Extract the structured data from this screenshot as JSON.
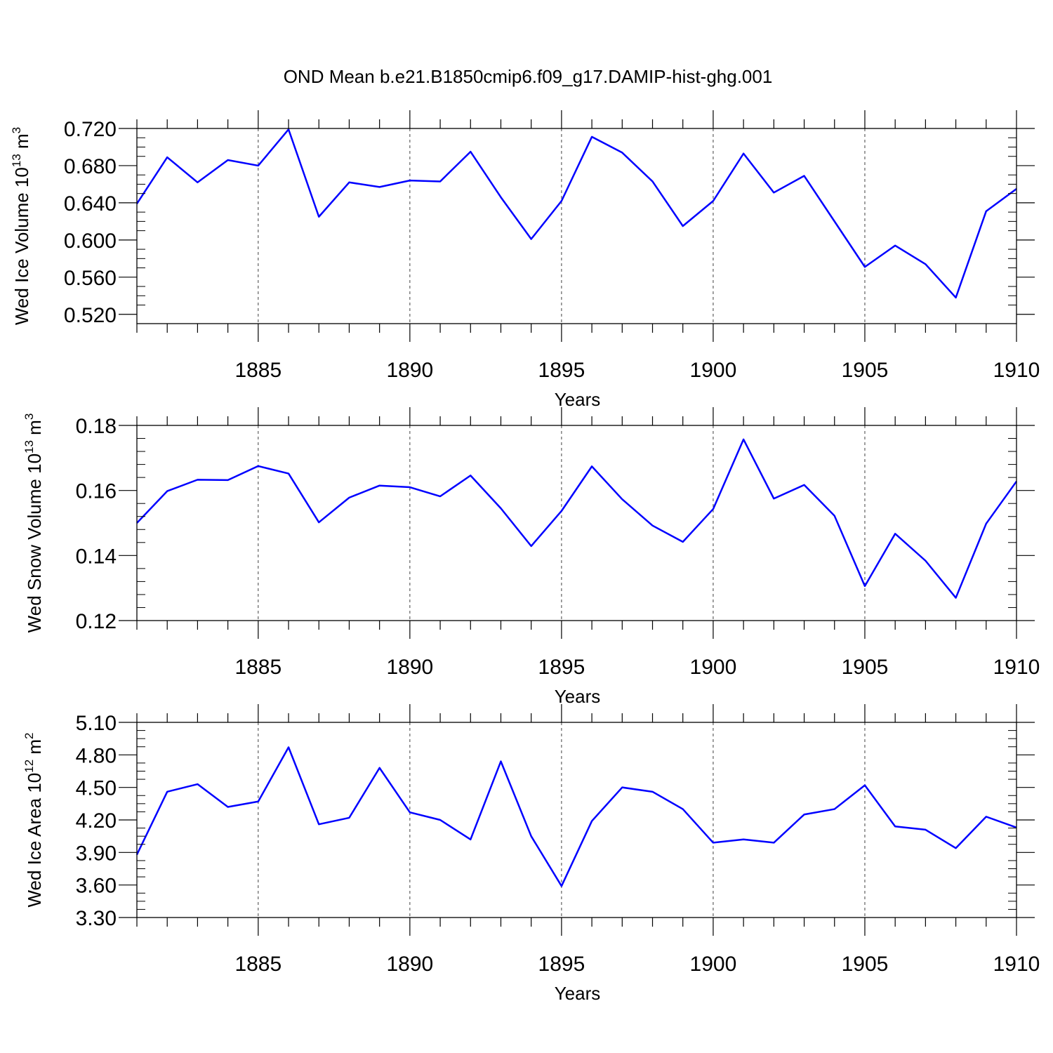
{
  "title": "OND Mean b.e21.B1850cmip6.f09_g17.DAMIP-hist-ghg.001",
  "colors": {
    "line": "#0000ff",
    "axis": "#000000",
    "grid": "#000000"
  },
  "chart_data": [
    {
      "type": "line",
      "xlabel": "Years",
      "ylabel": "Wed Ice Volume 10",
      "ylabel_exp": "13",
      "ylabel_unit": " m",
      "ylabel_unit_exp": "3",
      "xlim": [
        1881,
        1910
      ],
      "ylim": [
        0.51,
        0.72
      ],
      "yticks": [
        0.52,
        0.56,
        0.6,
        0.64,
        0.68,
        0.72
      ],
      "ytick_labels": [
        "0.520",
        "0.560",
        "0.600",
        "0.640",
        "0.680",
        "0.720"
      ],
      "yminor_step": 0.01,
      "xticks": [
        1885,
        1890,
        1895,
        1900,
        1905,
        1910
      ],
      "xtick_labels": [
        "1885",
        "1890",
        "1895",
        "1900",
        "1905",
        "1910"
      ],
      "grid": "vertical-dashed",
      "x": [
        1881,
        1882,
        1883,
        1884,
        1885,
        1886,
        1887,
        1888,
        1889,
        1890,
        1891,
        1892,
        1893,
        1894,
        1895,
        1896,
        1897,
        1898,
        1899,
        1900,
        1901,
        1902,
        1903,
        1904,
        1905,
        1906,
        1907,
        1908,
        1909,
        1910
      ],
      "values": [
        0.639,
        0.689,
        0.662,
        0.686,
        0.68,
        0.719,
        0.625,
        0.662,
        0.657,
        0.664,
        0.663,
        0.695,
        0.646,
        0.601,
        0.642,
        0.711,
        0.694,
        0.663,
        0.615,
        0.642,
        0.693,
        0.651,
        0.669,
        0.62,
        0.571,
        0.594,
        0.574,
        0.538,
        0.631,
        0.655
      ]
    },
    {
      "type": "line",
      "xlabel": "Years",
      "ylabel": "Wed Snow Volume 10",
      "ylabel_exp": "13",
      "ylabel_unit": " m",
      "ylabel_unit_exp": "3",
      "xlim": [
        1881,
        1910
      ],
      "ylim": [
        0.12,
        0.18
      ],
      "yticks": [
        0.12,
        0.14,
        0.16,
        0.18
      ],
      "ytick_labels": [
        "0.12",
        "0.14",
        "0.16",
        "0.18"
      ],
      "yminor_step": 0.004,
      "xticks": [
        1885,
        1890,
        1895,
        1900,
        1905,
        1910
      ],
      "xtick_labels": [
        "1885",
        "1890",
        "1895",
        "1900",
        "1905",
        "1910"
      ],
      "grid": "vertical-dashed",
      "x": [
        1881,
        1882,
        1883,
        1884,
        1885,
        1886,
        1887,
        1888,
        1889,
        1890,
        1891,
        1892,
        1893,
        1894,
        1895,
        1896,
        1897,
        1898,
        1899,
        1900,
        1901,
        1902,
        1903,
        1904,
        1905,
        1906,
        1907,
        1908,
        1909,
        1910
      ],
      "values": [
        0.15,
        0.1598,
        0.1633,
        0.1632,
        0.1675,
        0.1652,
        0.1502,
        0.1578,
        0.1615,
        0.161,
        0.1582,
        0.1646,
        0.1545,
        0.1429,
        0.1537,
        0.1674,
        0.1573,
        0.1492,
        0.1442,
        0.1543,
        0.1757,
        0.1575,
        0.1617,
        0.1522,
        0.1306,
        0.1467,
        0.1384,
        0.127,
        0.1498,
        0.1628
      ]
    },
    {
      "type": "line",
      "xlabel": "Years",
      "ylabel": "Wed Ice Area 10",
      "ylabel_exp": "12",
      "ylabel_unit": " m",
      "ylabel_unit_exp": "2",
      "xlim": [
        1881,
        1910
      ],
      "ylim": [
        3.3,
        5.1
      ],
      "yticks": [
        3.3,
        3.6,
        3.9,
        4.2,
        4.5,
        4.8,
        5.1
      ],
      "ytick_labels": [
        "3.30",
        "3.60",
        "3.90",
        "4.20",
        "4.50",
        "4.80",
        "5.10"
      ],
      "yminor_step": 0.075,
      "xticks": [
        1885,
        1890,
        1895,
        1900,
        1905,
        1910
      ],
      "xtick_labels": [
        "1885",
        "1890",
        "1895",
        "1900",
        "1905",
        "1910"
      ],
      "grid": "vertical-dashed",
      "x": [
        1881,
        1882,
        1883,
        1884,
        1885,
        1886,
        1887,
        1888,
        1889,
        1890,
        1891,
        1892,
        1893,
        1894,
        1895,
        1896,
        1897,
        1898,
        1899,
        1900,
        1901,
        1902,
        1903,
        1904,
        1905,
        1906,
        1907,
        1908,
        1909,
        1910
      ],
      "values": [
        3.88,
        4.46,
        4.53,
        4.32,
        4.37,
        4.87,
        4.16,
        4.22,
        4.68,
        4.27,
        4.2,
        4.02,
        4.74,
        4.05,
        3.59,
        4.19,
        4.5,
        4.46,
        4.3,
        3.99,
        4.02,
        3.99,
        4.25,
        4.3,
        4.52,
        4.14,
        4.11,
        3.94,
        4.23,
        4.13
      ]
    }
  ]
}
